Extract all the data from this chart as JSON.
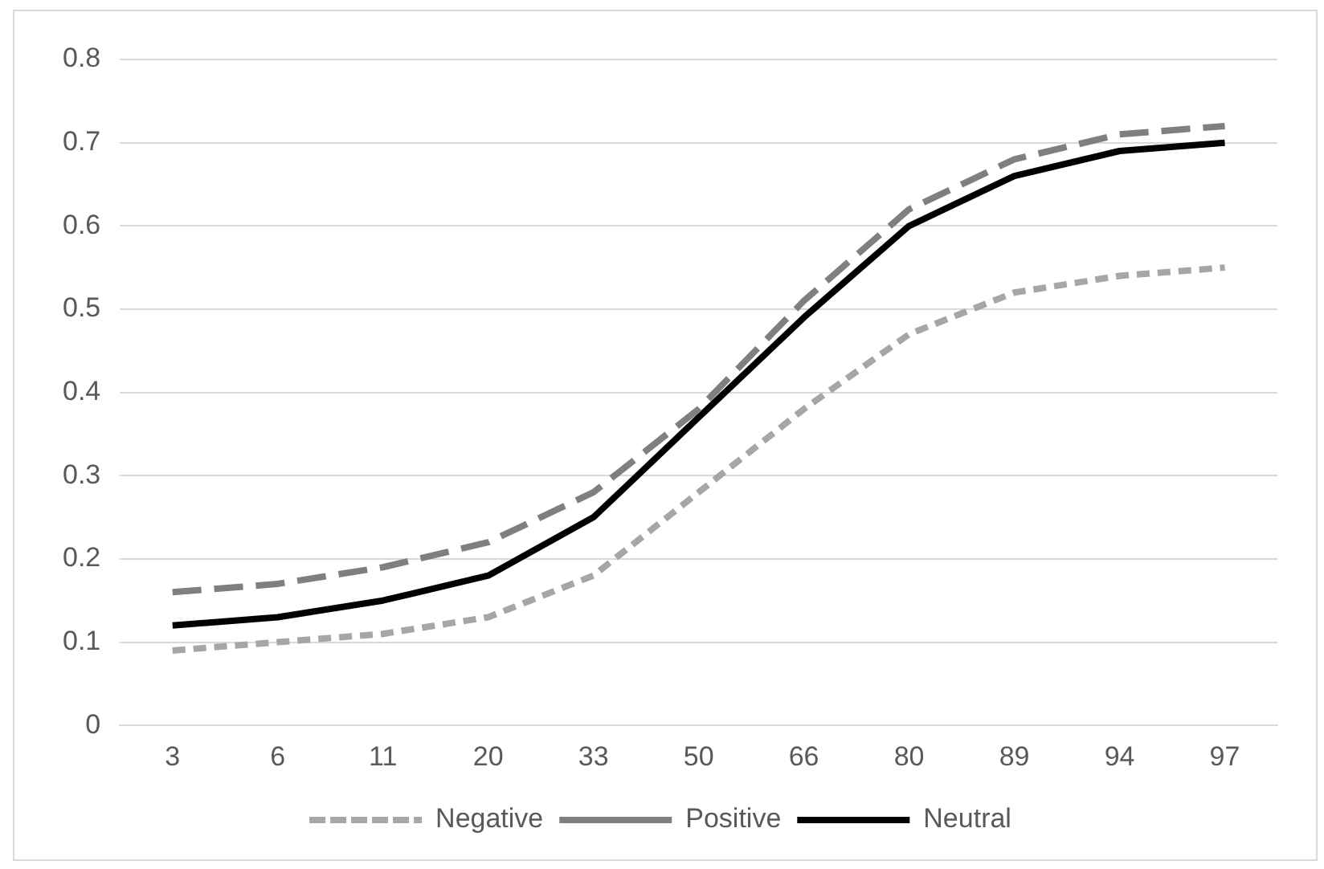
{
  "chart_data": {
    "type": "line",
    "categories": [
      "3",
      "6",
      "11",
      "20",
      "33",
      "50",
      "66",
      "80",
      "89",
      "94",
      "97"
    ],
    "series": [
      {
        "name": "Negative",
        "color": "#a6a6a6",
        "line_style": "dotted",
        "values": [
          0.09,
          0.1,
          0.11,
          0.13,
          0.18,
          0.28,
          0.38,
          0.47,
          0.52,
          0.54,
          0.55
        ]
      },
      {
        "name": "Positive",
        "color": "#7f7f7f",
        "line_style": "dashed",
        "values": [
          0.16,
          0.17,
          0.19,
          0.22,
          0.28,
          0.38,
          0.51,
          0.62,
          0.68,
          0.71,
          0.72
        ]
      },
      {
        "name": "Neutral",
        "color": "#000000",
        "line_style": "solid",
        "values": [
          0.12,
          0.13,
          0.15,
          0.18,
          0.25,
          0.37,
          0.49,
          0.6,
          0.66,
          0.69,
          0.7
        ]
      }
    ],
    "ylim": [
      0,
      0.8
    ],
    "yticks": [
      0,
      0.1,
      0.2,
      0.3,
      0.4,
      0.5,
      0.6,
      0.7,
      0.8
    ],
    "grid": "y",
    "legend": "bottom",
    "marker": "none"
  }
}
